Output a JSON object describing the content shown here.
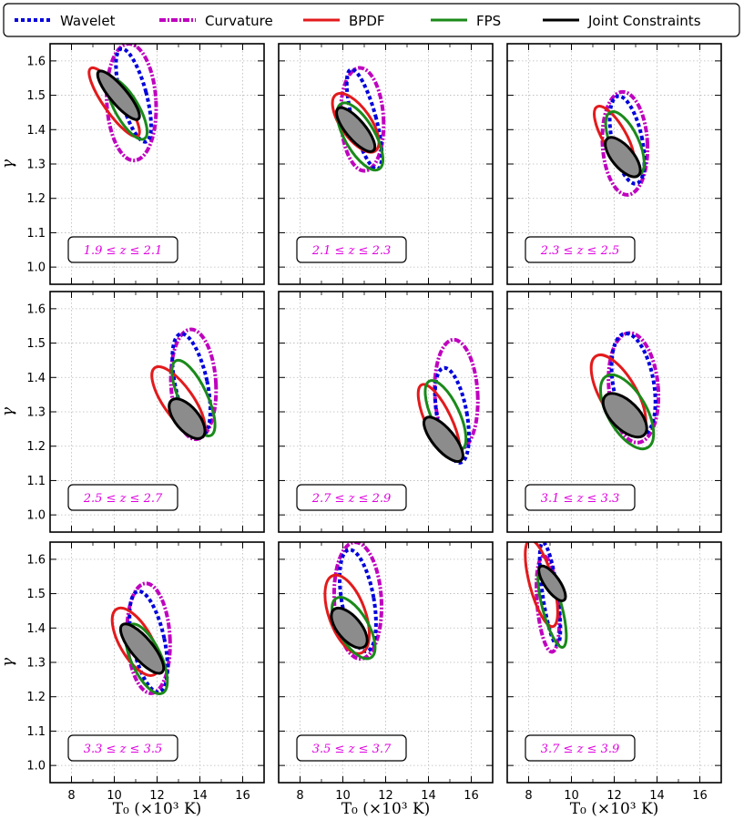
{
  "chart_data": {
    "type": "contour",
    "x_label": "T₀ (×10³ K)",
    "y_label": "γ",
    "xlim": [
      7,
      17
    ],
    "ylim": [
      0.95,
      1.65
    ],
    "x_ticks": [
      8,
      10,
      12,
      14,
      16
    ],
    "y_ticks": [
      1.0,
      1.1,
      1.2,
      1.3,
      1.4,
      1.5,
      1.6
    ],
    "x_tick_labels": [
      "8",
      "10",
      "12",
      "14",
      "16"
    ],
    "y_tick_labels": [
      "1.0",
      "1.1",
      "1.2",
      "1.3",
      "1.4",
      "1.5",
      "1.6"
    ],
    "grid": true,
    "legend_position": "top",
    "legend": [
      {
        "key": "wavelet",
        "label": "Wavelet",
        "color": "#0000dd",
        "style": "dotted"
      },
      {
        "key": "curvature",
        "label": "Curvature",
        "color": "#bf00bf",
        "style": "dashdot"
      },
      {
        "key": "bpdf",
        "label": "BPDF",
        "color": "#e31a1c",
        "style": "solid"
      },
      {
        "key": "fps",
        "label": "FPS",
        "color": "#1a8a1a",
        "style": "solid"
      },
      {
        "key": "joint",
        "label": "Joint Constraints",
        "color": "#000000",
        "style": "solid"
      }
    ],
    "panels": [
      {
        "z_label": "1.9 ≤ z ≤ 2.1",
        "ellipses": {
          "wavelet": {
            "x": 10.9,
            "y": 1.5,
            "sx": 0.6,
            "sy": 0.14,
            "angle": -15
          },
          "curvature": {
            "x": 10.8,
            "y": 1.48,
            "sx": 1.15,
            "sy": 0.17,
            "angle": -3
          },
          "bpdf": {
            "x": 10.0,
            "y": 1.48,
            "sx": 0.5,
            "sy": 0.12,
            "angle": -35
          },
          "fps": {
            "x": 10.6,
            "y": 1.46,
            "sx": 0.55,
            "sy": 0.1,
            "angle": -30
          },
          "joint": {
            "x": 10.2,
            "y": 1.5,
            "sx": 0.4,
            "sy": 0.09,
            "angle": -40
          }
        }
      },
      {
        "z_label": "2.1 ≤ z ≤ 2.3",
        "ellipses": {
          "wavelet": {
            "x": 11.0,
            "y": 1.43,
            "sx": 0.55,
            "sy": 0.15,
            "angle": -15
          },
          "curvature": {
            "x": 10.9,
            "y": 1.43,
            "sx": 1.0,
            "sy": 0.15,
            "angle": -3
          },
          "bpdf": {
            "x": 10.6,
            "y": 1.42,
            "sx": 0.7,
            "sy": 0.1,
            "angle": -35
          },
          "fps": {
            "x": 10.8,
            "y": 1.38,
            "sx": 0.7,
            "sy": 0.11,
            "angle": -30
          },
          "joint": {
            "x": 10.6,
            "y": 1.4,
            "sx": 0.45,
            "sy": 0.08,
            "angle": -40
          }
        }
      },
      {
        "z_label": "2.3 ≤ z ≤ 2.5",
        "ellipses": {
          "wavelet": {
            "x": 12.6,
            "y": 1.37,
            "sx": 0.7,
            "sy": 0.13,
            "angle": -12
          },
          "curvature": {
            "x": 12.5,
            "y": 1.36,
            "sx": 1.05,
            "sy": 0.15,
            "angle": -3
          },
          "bpdf": {
            "x": 12.0,
            "y": 1.38,
            "sx": 0.55,
            "sy": 0.1,
            "angle": -30
          },
          "fps": {
            "x": 12.5,
            "y": 1.36,
            "sx": 0.65,
            "sy": 0.1,
            "angle": -25
          },
          "joint": {
            "x": 12.4,
            "y": 1.32,
            "sx": 0.5,
            "sy": 0.07,
            "angle": -40
          }
        }
      },
      {
        "z_label": "2.5 ≤ z ≤ 2.7",
        "ellipses": {
          "wavelet": {
            "x": 13.6,
            "y": 1.38,
            "sx": 0.75,
            "sy": 0.15,
            "angle": -12
          },
          "curvature": {
            "x": 13.7,
            "y": 1.38,
            "sx": 1.05,
            "sy": 0.16,
            "angle": -3
          },
          "bpdf": {
            "x": 13.0,
            "y": 1.33,
            "sx": 0.7,
            "sy": 0.12,
            "angle": -35
          },
          "fps": {
            "x": 13.7,
            "y": 1.34,
            "sx": 0.65,
            "sy": 0.12,
            "angle": -25
          },
          "joint": {
            "x": 13.4,
            "y": 1.28,
            "sx": 0.55,
            "sy": 0.07,
            "angle": -40
          }
        }
      },
      {
        "z_label": "2.7 ≤ z ≤ 2.9",
        "ellipses": {
          "wavelet": {
            "x": 15.1,
            "y": 1.29,
            "sx": 0.7,
            "sy": 0.14,
            "angle": -10
          },
          "curvature": {
            "x": 15.3,
            "y": 1.35,
            "sx": 1.0,
            "sy": 0.16,
            "angle": -3
          },
          "bpdf": {
            "x": 14.5,
            "y": 1.27,
            "sx": 0.6,
            "sy": 0.12,
            "angle": -25
          },
          "fps": {
            "x": 14.8,
            "y": 1.29,
            "sx": 0.65,
            "sy": 0.11,
            "angle": -25
          },
          "joint": {
            "x": 14.7,
            "y": 1.22,
            "sx": 0.5,
            "sy": 0.08,
            "angle": -40
          }
        }
      },
      {
        "z_label": "3.1 ≤ z ≤ 3.3",
        "ellipses": {
          "wavelet": {
            "x": 12.9,
            "y": 1.38,
            "sx": 0.95,
            "sy": 0.15,
            "angle": -10
          },
          "curvature": {
            "x": 12.9,
            "y": 1.37,
            "sx": 1.15,
            "sy": 0.16,
            "angle": -5
          },
          "bpdf": {
            "x": 12.2,
            "y": 1.35,
            "sx": 0.85,
            "sy": 0.13,
            "angle": -30
          },
          "fps": {
            "x": 12.6,
            "y": 1.3,
            "sx": 0.9,
            "sy": 0.12,
            "angle": -30
          },
          "joint": {
            "x": 12.5,
            "y": 1.29,
            "sx": 0.65,
            "sy": 0.08,
            "angle": -45
          }
        }
      },
      {
        "z_label": "3.3 ≤ z ≤ 3.5",
        "ellipses": {
          "wavelet": {
            "x": 11.6,
            "y": 1.36,
            "sx": 0.75,
            "sy": 0.15,
            "angle": -12
          },
          "curvature": {
            "x": 11.6,
            "y": 1.37,
            "sx": 1.0,
            "sy": 0.16,
            "angle": -3
          },
          "bpdf": {
            "x": 11.0,
            "y": 1.36,
            "sx": 0.75,
            "sy": 0.11,
            "angle": -30
          },
          "fps": {
            "x": 11.5,
            "y": 1.31,
            "sx": 0.7,
            "sy": 0.11,
            "angle": -25
          },
          "joint": {
            "x": 11.3,
            "y": 1.34,
            "sx": 0.5,
            "sy": 0.09,
            "angle": -40
          }
        }
      },
      {
        "z_label": "3.5 ≤ z ≤ 3.7",
        "ellipses": {
          "wavelet": {
            "x": 10.7,
            "y": 1.48,
            "sx": 0.75,
            "sy": 0.15,
            "angle": -10
          },
          "curvature": {
            "x": 10.7,
            "y": 1.48,
            "sx": 1.1,
            "sy": 0.17,
            "angle": -3
          },
          "bpdf": {
            "x": 10.2,
            "y": 1.44,
            "sx": 0.85,
            "sy": 0.12,
            "angle": -20
          },
          "fps": {
            "x": 10.5,
            "y": 1.4,
            "sx": 0.7,
            "sy": 0.1,
            "angle": -30
          },
          "joint": {
            "x": 10.3,
            "y": 1.4,
            "sx": 0.55,
            "sy": 0.07,
            "angle": -40
          }
        }
      },
      {
        "z_label": "3.7 ≤ z ≤ 3.9",
        "ellipses": {
          "wavelet": {
            "x": 9.0,
            "y": 1.5,
            "sx": 0.35,
            "sy": 0.15,
            "angle": -8
          },
          "curvature": {
            "x": 8.9,
            "y": 1.47,
            "sx": 0.5,
            "sy": 0.14,
            "angle": -5
          },
          "bpdf": {
            "x": 8.6,
            "y": 1.53,
            "sx": 0.55,
            "sy": 0.13,
            "angle": -15
          },
          "fps": {
            "x": 9.1,
            "y": 1.46,
            "sx": 0.45,
            "sy": 0.12,
            "angle": -15
          },
          "joint": {
            "x": 9.1,
            "y": 1.53,
            "sx": 0.35,
            "sy": 0.06,
            "angle": -35
          }
        }
      }
    ]
  }
}
